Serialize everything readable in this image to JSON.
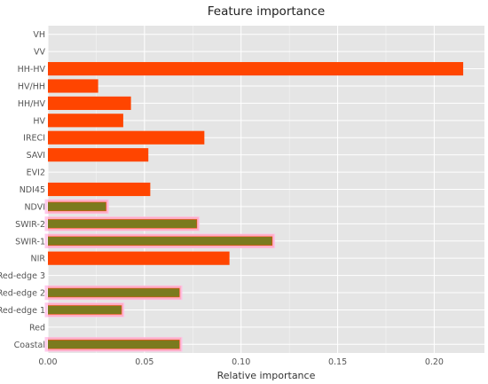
{
  "chart_data": {
    "type": "bar",
    "orientation": "horizontal",
    "title": "Feature importance",
    "xlabel": "Relative importance",
    "ylabel": "",
    "xlim": [
      0,
      0.226
    ],
    "xticks": [
      0.0,
      0.05,
      0.1,
      0.15,
      0.2
    ],
    "xtick_labels": [
      "0.00",
      "0.05",
      "0.10",
      "0.15",
      "0.20"
    ],
    "grid": true,
    "legend": "none",
    "categories": [
      "VH",
      "VV",
      "HH-HV",
      "HV/HH",
      "HH/HV",
      "HV",
      "IRECI",
      "SAVI",
      "EVI2",
      "NDI45",
      "NDVI",
      "SWIR-2",
      "SWIR-1",
      "NIR",
      "Red-edge 3",
      "Red-edge 2",
      "Red-edge 1",
      "Red",
      "Coastal"
    ],
    "series": [
      {
        "values": [
          0,
          0,
          0.215,
          0.026,
          0.043,
          0.039,
          0.081,
          0.052,
          0,
          0.053,
          0.031,
          0.078,
          0.117,
          0.094,
          0,
          0.069,
          0.039,
          0,
          0.069
        ],
        "color": "#ff4500"
      },
      {
        "values": [
          0,
          0,
          0,
          0,
          0,
          0,
          0,
          0,
          0,
          0,
          0.03,
          0.077,
          0.116,
          0,
          0,
          0.068,
          0.038,
          0,
          0.068
        ],
        "color": "#7b7a1e",
        "highlight": "#ffc0e8"
      }
    ],
    "colors": {
      "plot_background": "#e5e5e5",
      "grid": "#ffffff",
      "bar": "#ff4500",
      "overlay_bar": "#7b7a1e",
      "overlay_glow": "#ffc0e8"
    }
  }
}
